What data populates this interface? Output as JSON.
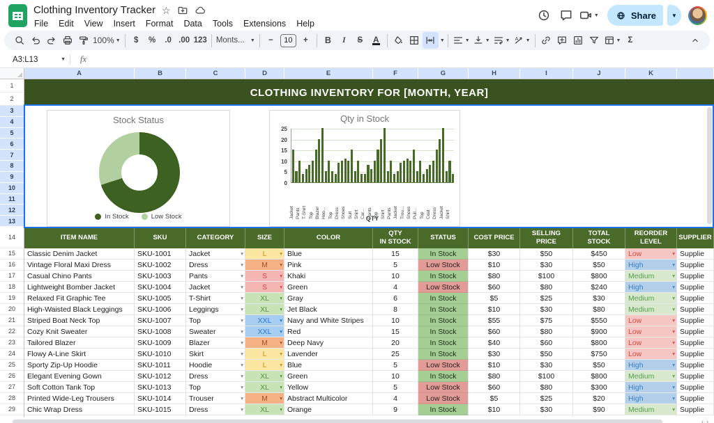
{
  "app": {
    "title": "Clothing Inventory Tracker",
    "menus": [
      "File",
      "Edit",
      "View",
      "Insert",
      "Format",
      "Data",
      "Tools",
      "Extensions",
      "Help"
    ],
    "share_label": "Share"
  },
  "toolbar": {
    "zoom": "100%",
    "currency": "$",
    "percent": "%",
    "decrease_decimal": ".0",
    "increase_decimal": ".00",
    "more_formats": "123",
    "font_name": "Monts...",
    "font_size": "10",
    "minus": "−",
    "plus": "+",
    "bold": "B",
    "italic": "I",
    "strikethrough": "S",
    "text_color": "A",
    "sum": "Σ"
  },
  "formula_bar": {
    "name_box": "A3:L13",
    "fx": "fx"
  },
  "grid": {
    "banner": "CLOTHING INVENTORY FOR [MONTH, YEAR]",
    "column_letters": [
      "A",
      "B",
      "C",
      "D",
      "E",
      "F",
      "G",
      "H",
      "I",
      "J",
      "K",
      ""
    ],
    "row_start": 1,
    "row_end": 29,
    "selected_rows_from": 3,
    "selected_rows_to": 13
  },
  "chart_data": [
    {
      "type": "pie",
      "donut": true,
      "title": "Stock Status",
      "labels": [
        "In Stock",
        "Low Stock"
      ],
      "values": [
        70,
        30
      ],
      "colors": [
        "#3d6120",
        "#b1cf9f"
      ],
      "legend_position": "bottom"
    },
    {
      "type": "bar",
      "title": "Qty in Stock",
      "xlabel": "QTY",
      "ylim": [
        0,
        25
      ],
      "yticks": [
        0,
        5,
        10,
        15,
        20,
        25
      ],
      "bar_color": "#466b27",
      "categories_every_other": [
        "Jacket",
        "Pants",
        "T-Shirt",
        "Top",
        "Blazer",
        "Hoo...",
        "Top",
        "Dress",
        "Shoes",
        "Suit",
        "Shirt",
        "Car...",
        "Pants",
        "Top",
        "Shirt",
        "Pants",
        "Jacket",
        "Trou...",
        "Shoes",
        "Pull...",
        "Top",
        "Coat",
        "Dress",
        "Jacket",
        "Shirt"
      ],
      "values": [
        15,
        5,
        10,
        4,
        6,
        8,
        10,
        15,
        20,
        25,
        5,
        10,
        5,
        4,
        9,
        10,
        11,
        10,
        15,
        5,
        10,
        4,
        4,
        8,
        6,
        10,
        15,
        20,
        25,
        5,
        10,
        4,
        5,
        9,
        10,
        11,
        10,
        15,
        5,
        10,
        4,
        6,
        8,
        10,
        15,
        20,
        25,
        5,
        10,
        4
      ]
    }
  ],
  "table": {
    "headers": [
      "ITEM NAME",
      "SKU",
      "CATEGORY",
      "SIZE",
      "COLOR",
      "QTY\nIN STOCK",
      "STATUS",
      "COST PRICE",
      "SELLING\nPRICE",
      "TOTAL\nSTOCK",
      "REORDER\nLEVEL",
      "SUPPLIER"
    ],
    "rows": [
      {
        "row": 15,
        "item": "Classic Denim Jacket",
        "sku": "SKU-1001",
        "category": "Jacket",
        "size": "L",
        "color": "Blue",
        "qty": "15",
        "status": "In Stock",
        "cost": "$30",
        "sell": "$50",
        "total": "$450",
        "reorder": "Low",
        "supplier": "Supplie"
      },
      {
        "row": 16,
        "item": "Vintage Floral Maxi Dress",
        "sku": "SKU-1002",
        "category": "Dress",
        "size": "M",
        "color": "Pink",
        "qty": "5",
        "status": "Low Stock",
        "cost": "$10",
        "sell": "$30",
        "total": "$50",
        "reorder": "High",
        "supplier": "Supplie"
      },
      {
        "row": 17,
        "item": "Casual Chino Pants",
        "sku": "SKU-1003",
        "category": "Pants",
        "size": "S",
        "color": "Khaki",
        "qty": "10",
        "status": "In Stock",
        "cost": "$80",
        "sell": "$100",
        "total": "$800",
        "reorder": "Medium",
        "supplier": "Supplie"
      },
      {
        "row": 18,
        "item": "Lightweight Bomber Jacket",
        "sku": "SKU-1004",
        "category": "Jacket",
        "size": "S",
        "color": "Green",
        "qty": "4",
        "status": "Low Stock",
        "cost": "$60",
        "sell": "$80",
        "total": "$240",
        "reorder": "High",
        "supplier": "Supplie"
      },
      {
        "row": 19,
        "item": "Relaxed Fit Graphic Tee",
        "sku": "SKU-1005",
        "category": "T-Shirt",
        "size": "XL",
        "color": "Gray",
        "qty": "6",
        "status": "In Stock",
        "cost": "$5",
        "sell": "$25",
        "total": "$30",
        "reorder": "Medium",
        "supplier": "Supplie"
      },
      {
        "row": 20,
        "item": "High-Waisted Black Leggings",
        "sku": "SKU-1006",
        "category": "Leggings",
        "size": "XL",
        "color": "Jet Black",
        "qty": "8",
        "status": "In Stock",
        "cost": "$10",
        "sell": "$30",
        "total": "$80",
        "reorder": "Medium",
        "supplier": "Supplie"
      },
      {
        "row": 21,
        "item": "Striped Boat Neck Top",
        "sku": "SKU-1007",
        "category": "Top",
        "size": "XXL",
        "color": "Navy and White Stripes",
        "qty": "10",
        "status": "In Stock",
        "cost": "$55",
        "sell": "$75",
        "total": "$550",
        "reorder": "Low",
        "supplier": "Supplie"
      },
      {
        "row": 22,
        "item": "Cozy Knit Sweater",
        "sku": "SKU-1008",
        "category": "Sweater",
        "size": "XXL",
        "color": "Red",
        "qty": "15",
        "status": "In Stock",
        "cost": "$60",
        "sell": "$80",
        "total": "$900",
        "reorder": "Low",
        "supplier": "Supplie"
      },
      {
        "row": 23,
        "item": "Tailored Blazer",
        "sku": "SKU-1009",
        "category": "Blazer",
        "size": "M",
        "color": "Deep Navy",
        "qty": "20",
        "status": "In Stock",
        "cost": "$40",
        "sell": "$60",
        "total": "$800",
        "reorder": "Low",
        "supplier": "Supplie"
      },
      {
        "row": 24,
        "item": "Flowy A-Line Skirt",
        "sku": "SKU-1010",
        "category": "Skirt",
        "size": "L",
        "color": "Lavender",
        "qty": "25",
        "status": "In Stock",
        "cost": "$30",
        "sell": "$50",
        "total": "$750",
        "reorder": "Low",
        "supplier": "Supplie"
      },
      {
        "row": 25,
        "item": "Sporty Zip-Up Hoodie",
        "sku": "SKU-1011",
        "category": "Hoodie",
        "size": "L",
        "color": "Blue",
        "qty": "5",
        "status": "Low Stock",
        "cost": "$10",
        "sell": "$30",
        "total": "$50",
        "reorder": "High",
        "supplier": "Supplie"
      },
      {
        "row": 26,
        "item": "Elegant Evening Gown",
        "sku": "SKU-1012",
        "category": "Dress",
        "size": "XL",
        "color": "Green",
        "qty": "10",
        "status": "In Stock",
        "cost": "$80",
        "sell": "$100",
        "total": "$800",
        "reorder": "Medium",
        "supplier": "Supplie"
      },
      {
        "row": 27,
        "item": "Soft Cotton Tank Top",
        "sku": "SKU-1013",
        "category": "Top",
        "size": "XL",
        "color": "Yellow",
        "qty": "5",
        "status": "Low Stock",
        "cost": "$60",
        "sell": "$80",
        "total": "$300",
        "reorder": "High",
        "supplier": "Supplie"
      },
      {
        "row": 28,
        "item": "Printed Wide-Leg Trousers",
        "sku": "SKU-1014",
        "category": "Trouser",
        "size": "M",
        "color": "Abstract Multicolor",
        "qty": "4",
        "status": "Low Stock",
        "cost": "$5",
        "sell": "$25",
        "total": "$20",
        "reorder": "High",
        "supplier": "Supplie"
      },
      {
        "row": 29,
        "item": "Chic Wrap Dress",
        "sku": "SKU-1015",
        "category": "Dress",
        "size": "XL",
        "color": "Orange",
        "qty": "9",
        "status": "In Stock",
        "cost": "$10",
        "sell": "$30",
        "total": "$90",
        "reorder": "Medium",
        "supplier": "Supplie"
      }
    ]
  },
  "colors": {
    "banner_bg": "#3a521f",
    "header_bg": "#4a6a2a",
    "selection": "#1a73e8",
    "share_bg": "#c2e7ff",
    "size": {
      "S": {
        "bg": "#f4b6b2",
        "fg": "#cc4744"
      },
      "M": {
        "bg": "#f5b183",
        "fg": "#a85321"
      },
      "L": {
        "bg": "#fbe7a1",
        "fg": "#cf8c28"
      },
      "XL": {
        "bg": "#c8e3b6",
        "fg": "#53953f"
      },
      "XXL": {
        "bg": "#a7cdf0",
        "fg": "#2b78d4"
      }
    },
    "status": {
      "In Stock": {
        "bg": "#a5ce94",
        "fg": "#222b1c"
      },
      "Low Stock": {
        "bg": "#e29c97",
        "fg": "#2e211f"
      }
    },
    "reorder": {
      "Low": {
        "bg": "#f6c6c2",
        "fg": "#d44a3e"
      },
      "High": {
        "bg": "#b3cfe9",
        "fg": "#4081c4"
      },
      "Medium": {
        "bg": "#d7e8cc",
        "fg": "#57a14e"
      }
    }
  }
}
